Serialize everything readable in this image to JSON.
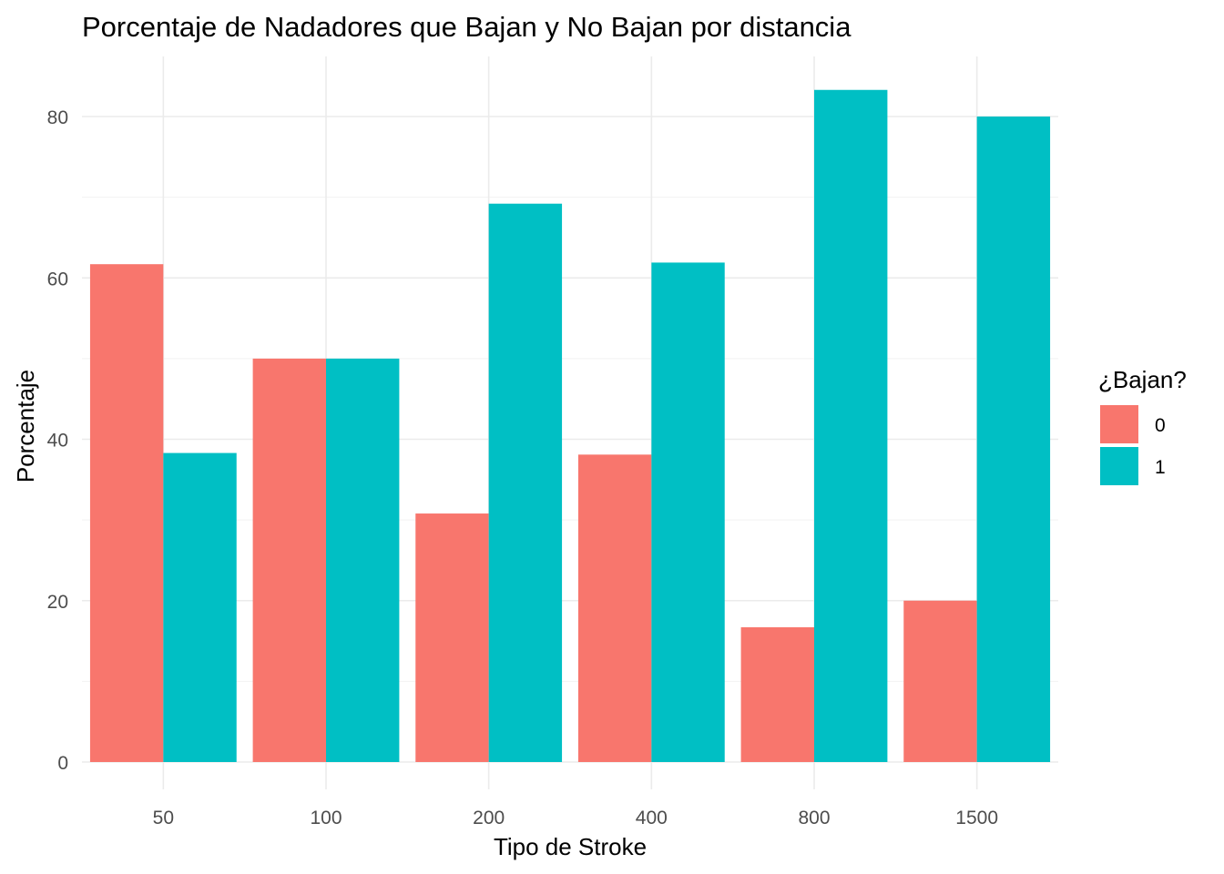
{
  "chart_data": {
    "type": "bar",
    "title": "Porcentaje de Nadadores que Bajan y No Bajan por distancia",
    "xlabel": "Tipo de Stroke",
    "ylabel": "Porcentaje",
    "categories": [
      "50",
      "100",
      "200",
      "400",
      "800",
      "1500"
    ],
    "series": [
      {
        "name": "0",
        "color": "#F8766D",
        "values": [
          61.7,
          50.0,
          30.8,
          38.1,
          16.7,
          20.0
        ]
      },
      {
        "name": "1",
        "color": "#00BFC4",
        "values": [
          38.3,
          50.0,
          69.2,
          61.9,
          83.3,
          80.0
        ]
      }
    ],
    "ylim": [
      0,
      87
    ],
    "yticks": [
      0,
      20,
      40,
      60,
      80
    ],
    "grid": true,
    "legend": {
      "title": "¿Bajan?",
      "position": "right"
    }
  }
}
